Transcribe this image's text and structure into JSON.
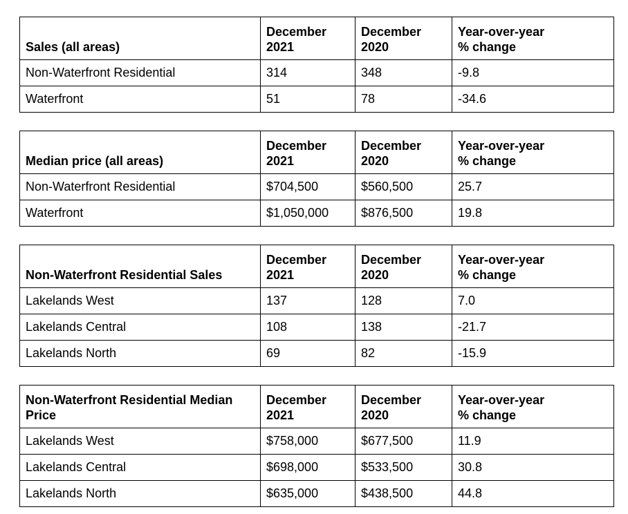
{
  "document": {
    "background_color": "#ffffff",
    "text_color": "#000000",
    "border_color": "#000000"
  },
  "tables": [
    {
      "title": "Sales (all areas)",
      "col_headers": [
        "December\n2021",
        "December\n2020",
        "Year-over-year\n% change"
      ],
      "rows": [
        {
          "label": "Non-Waterfront Residential",
          "dec_2021": "314",
          "dec_2020": "348",
          "yoy_change": "-9.8"
        },
        {
          "label": "Waterfront",
          "dec_2021": "51",
          "dec_2020": "78",
          "yoy_change": "-34.6"
        }
      ]
    },
    {
      "title": "Median price (all areas)",
      "col_headers": [
        "December\n2021",
        "December\n2020",
        "Year-over-year\n% change"
      ],
      "rows": [
        {
          "label": "Non-Waterfront Residential",
          "dec_2021": "$704,500",
          "dec_2020": "$560,500",
          "yoy_change": "25.7"
        },
        {
          "label": "Waterfront",
          "dec_2021": "$1,050,000",
          "dec_2020": "$876,500",
          "yoy_change": "19.8"
        }
      ]
    },
    {
      "title": "Non-Waterfront Residential Sales",
      "col_headers": [
        "December\n2021",
        "December\n2020",
        "Year-over-year\n% change"
      ],
      "rows": [
        {
          "label": "Lakelands West",
          "dec_2021": "137",
          "dec_2020": "128",
          "yoy_change": "7.0"
        },
        {
          "label": "Lakelands Central",
          "dec_2021": "108",
          "dec_2020": "138",
          "yoy_change": "-21.7"
        },
        {
          "label": "Lakelands North",
          "dec_2021": "69",
          "dec_2020": "82",
          "yoy_change": "-15.9"
        }
      ]
    },
    {
      "title": "Non-Waterfront Residential Median\nPrice",
      "col_headers": [
        "December\n2021",
        "December\n2020",
        "Year-over-year\n% change"
      ],
      "rows": [
        {
          "label": "Lakelands West",
          "dec_2021": "$758,000",
          "dec_2020": "$677,500",
          "yoy_change": "11.9"
        },
        {
          "label": "Lakelands Central",
          "dec_2021": "$698,000",
          "dec_2020": "$533,500",
          "yoy_change": "30.8"
        },
        {
          "label": "Lakelands North",
          "dec_2021": "$635,000",
          "dec_2020": "$438,500",
          "yoy_change": "44.8"
        }
      ]
    }
  ]
}
